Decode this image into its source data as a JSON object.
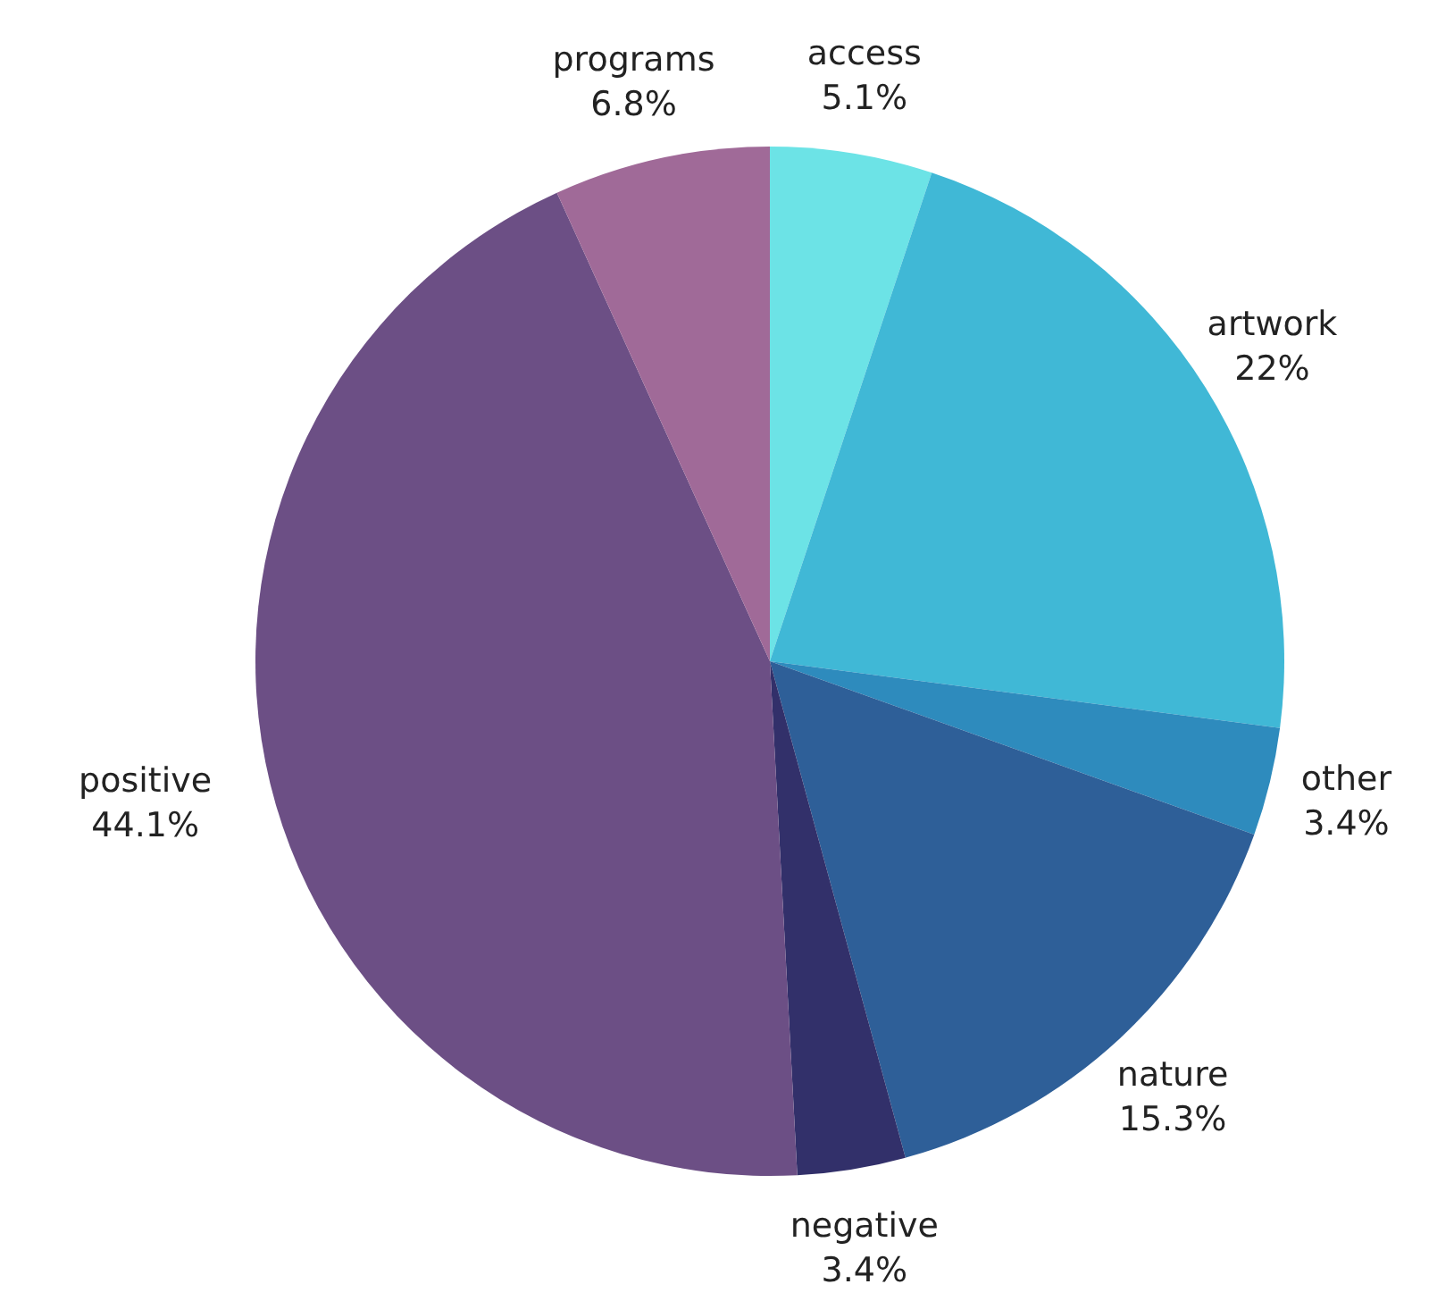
{
  "chart_data": {
    "type": "pie",
    "categories": [
      "access",
      "artwork",
      "other",
      "nature",
      "negative",
      "positive",
      "programs"
    ],
    "values": [
      5.1,
      22,
      3.4,
      15.3,
      3.4,
      44.1,
      6.8
    ],
    "colors": [
      "#6ce3e6",
      "#40b8d6",
      "#2e8bbd",
      "#2e5f98",
      "#32306a",
      "#6c4f85",
      "#a06a98"
    ],
    "value_labels": [
      "5.1%",
      "22%",
      "3.4%",
      "15.3%",
      "3.4%",
      "44.1%",
      "6.8%"
    ],
    "legend": false
  }
}
